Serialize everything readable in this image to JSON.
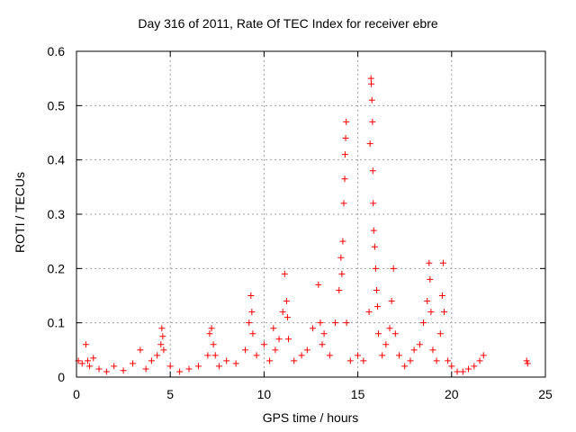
{
  "chart_data": {
    "type": "scatter",
    "title": "Day 316 of 2011, Rate Of TEC Index for receiver ebre",
    "xlabel": "GPS time / hours",
    "ylabel": "ROTI / TECUs",
    "xlim": [
      0,
      25
    ],
    "ylim": [
      0,
      0.6
    ],
    "xticks": [
      0,
      5,
      10,
      15,
      20,
      25
    ],
    "yticks": [
      0,
      0.1,
      0.2,
      0.3,
      0.4,
      0.5,
      0.6
    ],
    "xtick_labels": [
      "0",
      "5",
      "10",
      "15",
      "20",
      "25"
    ],
    "ytick_labels": [
      "0",
      "0.1",
      "0.2",
      "0.3",
      "0.4",
      "0.5",
      "0.6"
    ],
    "grid": true,
    "marker": "+",
    "color": "#ff0000",
    "series": [
      {
        "name": "ROTI",
        "x": [
          0.1,
          0.3,
          0.5,
          0.6,
          0.7,
          0.9,
          1.2,
          1.6,
          2.0,
          2.5,
          3.0,
          3.4,
          3.7,
          4.0,
          4.3,
          4.5,
          4.55,
          4.6,
          4.65,
          5.0,
          5.5,
          6.0,
          6.5,
          7.0,
          7.1,
          7.2,
          7.3,
          7.4,
          7.6,
          8.0,
          8.5,
          9.0,
          9.2,
          9.3,
          9.35,
          9.4,
          9.6,
          10.0,
          10.3,
          10.5,
          10.6,
          10.8,
          11.0,
          11.1,
          11.2,
          11.25,
          11.3,
          11.6,
          12.0,
          12.3,
          12.6,
          12.9,
          13.0,
          13.1,
          13.2,
          13.5,
          13.8,
          14.0,
          14.1,
          14.15,
          14.2,
          14.25,
          14.3,
          14.32,
          14.35,
          14.38,
          14.4,
          14.6,
          15.0,
          15.3,
          15.6,
          15.65,
          15.7,
          15.72,
          15.75,
          15.78,
          15.8,
          15.82,
          15.85,
          15.9,
          15.95,
          16.0,
          16.05,
          16.1,
          16.3,
          16.5,
          16.7,
          16.8,
          16.9,
          17.0,
          17.2,
          17.5,
          17.8,
          18.0,
          18.3,
          18.5,
          18.7,
          18.8,
          18.85,
          18.9,
          19.0,
          19.2,
          19.4,
          19.5,
          19.55,
          19.6,
          19.8,
          20.0,
          20.3,
          20.6,
          20.9,
          21.2,
          21.5,
          21.7,
          24.0,
          24.05
        ],
        "values": [
          0.03,
          0.025,
          0.06,
          0.03,
          0.02,
          0.035,
          0.015,
          0.01,
          0.02,
          0.012,
          0.025,
          0.05,
          0.015,
          0.03,
          0.04,
          0.06,
          0.09,
          0.075,
          0.05,
          0.02,
          0.01,
          0.015,
          0.02,
          0.04,
          0.08,
          0.09,
          0.06,
          0.04,
          0.02,
          0.03,
          0.025,
          0.05,
          0.1,
          0.15,
          0.12,
          0.08,
          0.04,
          0.06,
          0.03,
          0.09,
          0.05,
          0.07,
          0.12,
          0.19,
          0.14,
          0.11,
          0.07,
          0.03,
          0.04,
          0.05,
          0.09,
          0.17,
          0.1,
          0.06,
          0.08,
          0.04,
          0.1,
          0.16,
          0.22,
          0.19,
          0.25,
          0.32,
          0.365,
          0.41,
          0.44,
          0.47,
          0.1,
          0.03,
          0.04,
          0.03,
          0.12,
          0.43,
          0.55,
          0.54,
          0.51,
          0.47,
          0.38,
          0.32,
          0.27,
          0.24,
          0.2,
          0.16,
          0.13,
          0.08,
          0.04,
          0.06,
          0.09,
          0.14,
          0.2,
          0.08,
          0.04,
          0.02,
          0.03,
          0.05,
          0.06,
          0.1,
          0.14,
          0.21,
          0.18,
          0.12,
          0.05,
          0.03,
          0.08,
          0.15,
          0.21,
          0.12,
          0.03,
          0.02,
          0.01,
          0.01,
          0.015,
          0.02,
          0.03,
          0.04,
          0.03,
          0.025
        ]
      }
    ]
  }
}
